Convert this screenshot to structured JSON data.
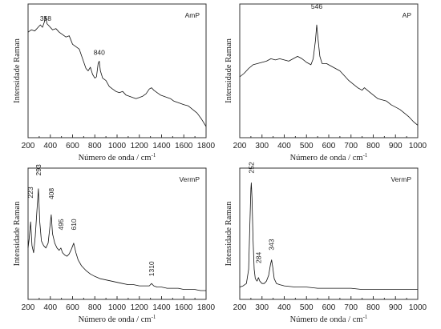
{
  "chart_data": [
    {
      "type": "line",
      "label": "AmP",
      "xlabel": "Número de onda / cm",
      "xlabel_sup": "-1",
      "ylabel": "Intensidade Raman",
      "xlim": [
        200,
        1800
      ],
      "ylim": [
        0,
        100
      ],
      "xticks": [
        200,
        400,
        600,
        800,
        1000,
        1200,
        1400,
        1600,
        1800
      ],
      "annotations": [
        {
          "text": "358",
          "x": 358,
          "y": 88,
          "rotate": false
        },
        {
          "text": "840",
          "x": 840,
          "y": 60,
          "rotate": false
        }
      ],
      "series": [
        {
          "x": [
            200,
            230,
            260,
            290,
            310,
            330,
            345,
            358,
            370,
            390,
            420,
            450,
            480,
            510,
            540,
            570,
            600,
            630,
            660,
            690,
            720,
            740,
            760,
            780,
            800,
            815,
            830,
            840,
            850,
            870,
            900,
            930,
            960,
            990,
            1020,
            1050,
            1080,
            1110,
            1140,
            1170,
            1200,
            1230,
            1260,
            1290,
            1310,
            1330,
            1360,
            1390,
            1420,
            1450,
            1480,
            1510,
            1540,
            1570,
            1600,
            1640,
            1680,
            1720,
            1760,
            1800
          ],
          "y": [
            82,
            84,
            83,
            86,
            88,
            86,
            90,
            95,
            89,
            87,
            84,
            85,
            82,
            80,
            78,
            79,
            72,
            70,
            68,
            60,
            52,
            50,
            53,
            47,
            44,
            45,
            56,
            58,
            50,
            44,
            42,
            37,
            35,
            33,
            32,
            33,
            30,
            29,
            28,
            27,
            28,
            29,
            31,
            35,
            36,
            34,
            32,
            30,
            29,
            28,
            27,
            25,
            24,
            23,
            22,
            21,
            18,
            15,
            10,
            4
          ]
        }
      ]
    },
    {
      "type": "line",
      "label": "AP",
      "xlabel": "Número de onda / cm",
      "xlabel_sup": "-1",
      "ylabel": "Intensidade Raman",
      "xlim": [
        200,
        1000
      ],
      "ylim": [
        0,
        100
      ],
      "xticks": [
        200,
        300,
        400,
        500,
        600,
        700,
        800,
        900,
        1000
      ],
      "annotations": [
        {
          "text": "546",
          "x": 546,
          "y": 98,
          "rotate": false
        }
      ],
      "series": [
        {
          "x": [
            200,
            220,
            240,
            260,
            280,
            300,
            320,
            340,
            360,
            380,
            400,
            420,
            440,
            460,
            480,
            500,
            520,
            530,
            540,
            546,
            552,
            560,
            570,
            590,
            610,
            630,
            650,
            670,
            690,
            710,
            730,
            750,
            760,
            780,
            800,
            820,
            840,
            860,
            880,
            900,
            920,
            940,
            960,
            980,
            1000
          ],
          "y": [
            45,
            48,
            52,
            55,
            56,
            57,
            58,
            60,
            59,
            60,
            59,
            58,
            60,
            62,
            60,
            57,
            55,
            60,
            75,
            88,
            76,
            62,
            56,
            56,
            54,
            52,
            50,
            46,
            42,
            39,
            36,
            34,
            36,
            33,
            30,
            27,
            26,
            25,
            22,
            20,
            18,
            15,
            12,
            8,
            5
          ]
        }
      ]
    },
    {
      "type": "line",
      "label": "VermP",
      "xlabel": "Número de onda / cm",
      "xlabel_sup": "-1",
      "ylabel": "Intensidade Raman",
      "xlim": [
        200,
        1800
      ],
      "ylim": [
        0,
        100
      ],
      "xticks": [
        200,
        400,
        600,
        800,
        1000,
        1200,
        1400,
        1600,
        1800
      ],
      "annotations": [
        {
          "text": "223",
          "x": 223,
          "y": 78,
          "rotate": true
        },
        {
          "text": "293",
          "x": 293,
          "y": 97,
          "rotate": true
        },
        {
          "text": "408",
          "x": 408,
          "y": 77,
          "rotate": true
        },
        {
          "text": "495",
          "x": 495,
          "y": 51,
          "rotate": true
        },
        {
          "text": "610",
          "x": 610,
          "y": 51,
          "rotate": true
        },
        {
          "text": "1310",
          "x": 1310,
          "y": 12,
          "rotate": true
        }
      ],
      "series": [
        {
          "x": [
            200,
            210,
            223,
            235,
            250,
            265,
            280,
            293,
            305,
            320,
            340,
            360,
            380,
            395,
            408,
            420,
            440,
            460,
            480,
            495,
            510,
            530,
            550,
            570,
            590,
            610,
            630,
            650,
            680,
            720,
            760,
            800,
            850,
            900,
            950,
            1000,
            1050,
            1100,
            1150,
            1200,
            1250,
            1290,
            1310,
            1330,
            1360,
            1400,
            1450,
            1500,
            1550,
            1600,
            1650,
            1700,
            1750,
            1800
          ],
          "y": [
            38,
            46,
            60,
            40,
            34,
            48,
            70,
            88,
            60,
            44,
            40,
            38,
            42,
            55,
            66,
            50,
            42,
            38,
            36,
            38,
            34,
            32,
            31,
            33,
            37,
            42,
            34,
            28,
            23,
            19,
            16,
            14,
            12,
            11,
            10,
            9,
            8,
            7,
            7,
            6,
            6,
            6,
            8,
            6,
            5,
            5,
            4,
            4,
            4,
            3,
            3,
            3,
            2,
            2
          ]
        }
      ]
    },
    {
      "type": "line",
      "label": "VermP",
      "xlabel": "Número de onda / cm",
      "xlabel_sup": "-1",
      "ylabel": "Intensidade Raman",
      "xlim": [
        200,
        1000
      ],
      "ylim": [
        0,
        100
      ],
      "xticks": [
        200,
        300,
        400,
        500,
        600,
        700,
        800,
        900,
        1000
      ],
      "annotations": [
        {
          "text": "252",
          "x": 252,
          "y": 99,
          "rotate": true
        },
        {
          "text": "284",
          "x": 284,
          "y": 23,
          "rotate": true
        },
        {
          "text": "343",
          "x": 343,
          "y": 34,
          "rotate": true
        }
      ],
      "series": [
        {
          "x": [
            200,
            215,
            230,
            240,
            245,
            250,
            252,
            255,
            260,
            265,
            270,
            278,
            284,
            290,
            300,
            310,
            320,
            330,
            338,
            343,
            348,
            355,
            365,
            380,
            400,
            450,
            500,
            550,
            600,
            650,
            700,
            750,
            800,
            850,
            900,
            950,
            1000
          ],
          "y": [
            5,
            6,
            8,
            20,
            55,
            88,
            93,
            80,
            45,
            20,
            12,
            10,
            13,
            10,
            8,
            8,
            10,
            15,
            24,
            28,
            22,
            12,
            8,
            7,
            6,
            5,
            5,
            4,
            4,
            4,
            4,
            3,
            3,
            3,
            3,
            3,
            3
          ]
        }
      ]
    }
  ]
}
